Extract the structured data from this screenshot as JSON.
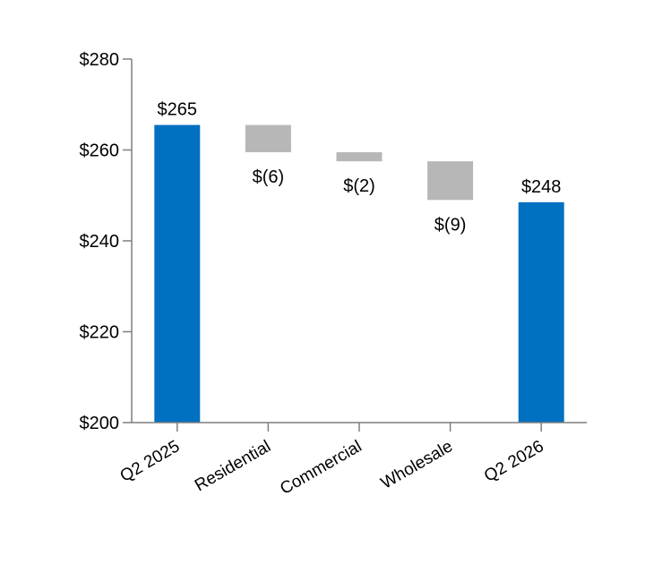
{
  "chart_data": {
    "type": "bar",
    "variant": "waterfall",
    "title": "",
    "xlabel": "",
    "ylabel": "",
    "ylim": [
      200,
      280
    ],
    "y_ticks": [
      {
        "value": 200,
        "label": "$200"
      },
      {
        "value": 220,
        "label": "$220"
      },
      {
        "value": 240,
        "label": "$240"
      },
      {
        "value": 260,
        "label": "$260"
      },
      {
        "value": 280,
        "label": "$280"
      }
    ],
    "categories": [
      "Q2 2025",
      "Residential",
      "Commercial",
      "Wholesale",
      "Q2 2026"
    ],
    "bars": [
      {
        "category": "Q2 2025",
        "kind": "total",
        "start": 200,
        "end": 265.5,
        "label": "$265",
        "color": "#0070c0"
      },
      {
        "category": "Residential",
        "kind": "change",
        "start": 265.5,
        "end": 259.5,
        "label": "$(6)",
        "color": "#b7b7b7"
      },
      {
        "category": "Commercial",
        "kind": "change",
        "start": 259.5,
        "end": 257.5,
        "label": "$(2)",
        "color": "#b7b7b7"
      },
      {
        "category": "Wholesale",
        "kind": "change",
        "start": 257.5,
        "end": 249,
        "label": "$(9)",
        "color": "#b7b7b7"
      },
      {
        "category": "Q2 2026",
        "kind": "total",
        "start": 200,
        "end": 248.5,
        "label": "$248",
        "color": "#0070c0"
      }
    ],
    "grid": false,
    "legend": "none"
  }
}
